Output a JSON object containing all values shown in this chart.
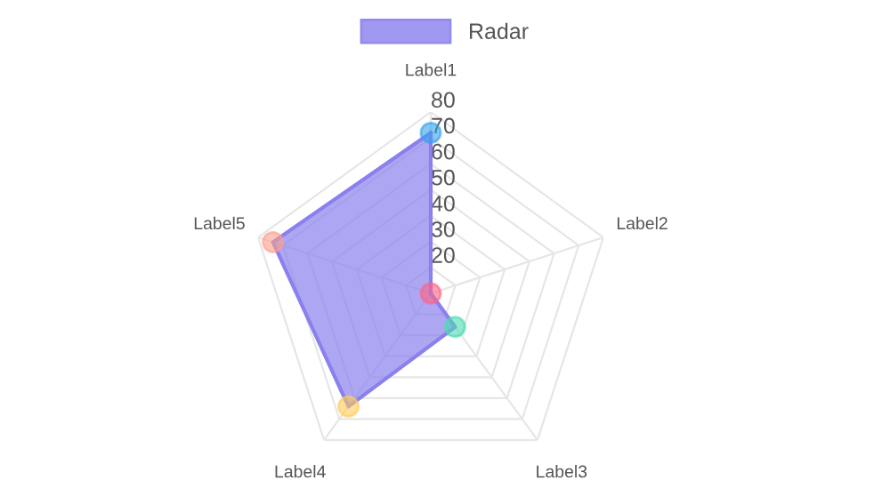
{
  "chart_data": {
    "type": "radar",
    "categories": [
      "Label1",
      "Label2",
      "Label3",
      "Label4",
      "Label5"
    ],
    "series": [
      {
        "name": "Radar",
        "color": "#8a80ee",
        "colors": [
          "#36a2eb",
          "#ff6384",
          "#4bdcb0",
          "#ffcd56",
          "#ff9f8a"
        ],
        "values": [
          72,
          10,
          26,
          64,
          74
        ]
      }
    ],
    "ylim": [
      10,
      80
    ],
    "yticks": [
      20,
      30,
      40,
      50,
      60,
      70,
      80
    ],
    "grid": true,
    "legend": "top",
    "marker": "circle"
  }
}
